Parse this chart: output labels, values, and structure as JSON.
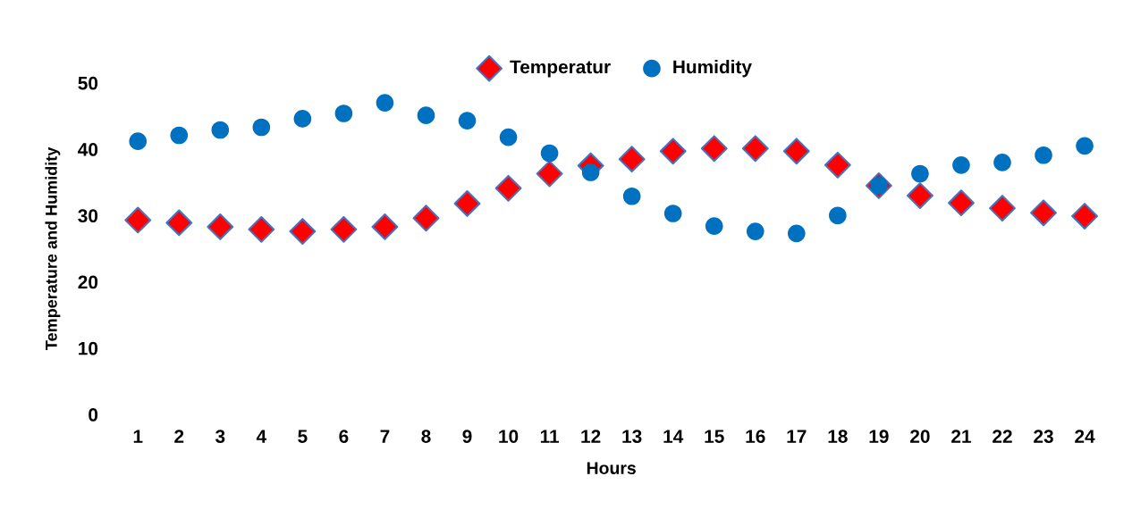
{
  "chart_data": {
    "type": "scatter",
    "xlabel": "Hours",
    "ylabel": "Temperature and Humidity",
    "categories": [
      "1",
      "2",
      "3",
      "4",
      "5",
      "6",
      "7",
      "8",
      "9",
      "10",
      "11",
      "12",
      "13",
      "14",
      "15",
      "16",
      "17",
      "18",
      "19",
      "20",
      "21",
      "22",
      "23",
      "24"
    ],
    "series": [
      {
        "name": "Temperatur",
        "color": "#ff0000",
        "marker": "diamond",
        "values": [
          29.3,
          28.9,
          28.3,
          27.9,
          27.6,
          27.9,
          28.3,
          29.6,
          31.8,
          34.1,
          36.3,
          37.5,
          38.5,
          39.7,
          40.1,
          40.1,
          39.7,
          37.6,
          34.5,
          33.0,
          31.9,
          31.1,
          30.4,
          29.9
        ]
      },
      {
        "name": "Humidity",
        "color": "#0070c0",
        "marker": "circle",
        "values": [
          41.2,
          42.1,
          42.9,
          43.3,
          44.6,
          45.4,
          47.0,
          45.1,
          44.3,
          41.8,
          39.4,
          36.5,
          32.9,
          30.3,
          28.4,
          27.6,
          27.3,
          30.0,
          34.5,
          36.3,
          37.6,
          38.0,
          39.1,
          40.5
        ]
      }
    ],
    "ylim": [
      0,
      50
    ],
    "yticks": [
      0,
      10,
      20,
      30,
      40,
      50
    ],
    "grid": false,
    "legend": "top"
  }
}
